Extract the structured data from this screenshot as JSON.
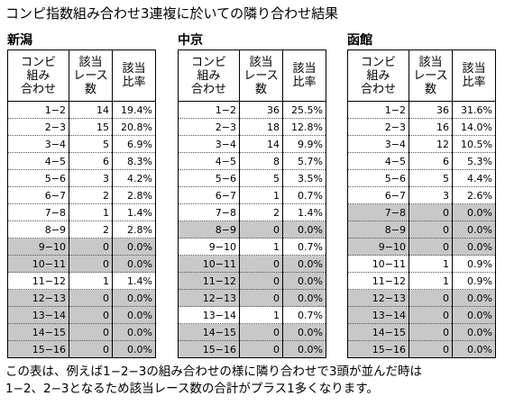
{
  "title": "コンピ指数組み合わせ3連複に於いての隣り合わせ結果",
  "headers": [
    "コンビ\n組み\n合わせ",
    "該当\nレース\n数",
    "該当\n比率"
  ],
  "tables": [
    {
      "name": "新潟",
      "rows": [
        [
          "1−2",
          14,
          "19.4%"
        ],
        [
          "2−3",
          15,
          "20.8%"
        ],
        [
          "3−4",
          5,
          "6.9%"
        ],
        [
          "4−5",
          6,
          "8.3%"
        ],
        [
          "5−6",
          3,
          "4.2%"
        ],
        [
          "6−7",
          2,
          "2.8%"
        ],
        [
          "7−8",
          1,
          "1.4%"
        ],
        [
          "8−9",
          2,
          "2.8%"
        ],
        [
          "9−10",
          0,
          "0.0%"
        ],
        [
          "10−11",
          0,
          "0.0%"
        ],
        [
          "11−12",
          1,
          "1.4%"
        ],
        [
          "12−13",
          0,
          "0.0%"
        ],
        [
          "13−14",
          0,
          "0.0%"
        ],
        [
          "14−15",
          0,
          "0.0%"
        ],
        [
          "15−16",
          0,
          "0.0%"
        ]
      ]
    },
    {
      "name": "中京",
      "rows": [
        [
          "1−2",
          36,
          "25.5%"
        ],
        [
          "2−3",
          18,
          "12.8%"
        ],
        [
          "3−4",
          14,
          "9.9%"
        ],
        [
          "4−5",
          8,
          "5.7%"
        ],
        [
          "5−6",
          5,
          "3.5%"
        ],
        [
          "6−7",
          1,
          "0.7%"
        ],
        [
          "7−8",
          2,
          "1.4%"
        ],
        [
          "8−9",
          0,
          "0.0%"
        ],
        [
          "9−10",
          1,
          "0.7%"
        ],
        [
          "10−11",
          0,
          "0.0%"
        ],
        [
          "11−12",
          0,
          "0.0%"
        ],
        [
          "12−13",
          0,
          "0.0%"
        ],
        [
          "13−14",
          1,
          "0.7%"
        ],
        [
          "14−15",
          0,
          "0.0%"
        ],
        [
          "15−16",
          0,
          "0.0%"
        ]
      ]
    },
    {
      "name": "函館",
      "rows": [
        [
          "1−2",
          36,
          "31.6%"
        ],
        [
          "2−3",
          16,
          "14.0%"
        ],
        [
          "3−4",
          12,
          "10.5%"
        ],
        [
          "4−5",
          6,
          "5.3%"
        ],
        [
          "5−6",
          5,
          "4.4%"
        ],
        [
          "6−7",
          3,
          "2.6%"
        ],
        [
          "7−8",
          0,
          "0.0%"
        ],
        [
          "8−9",
          0,
          "0.0%"
        ],
        [
          "9−10",
          0,
          "0.0%"
        ],
        [
          "10−11",
          1,
          "0.9%"
        ],
        [
          "11−12",
          1,
          "0.9%"
        ],
        [
          "12−13",
          0,
          "0.0%"
        ],
        [
          "13−14",
          0,
          "0.0%"
        ],
        [
          "14−15",
          0,
          "0.0%"
        ],
        [
          "15−16",
          0,
          "0.0%"
        ]
      ]
    }
  ],
  "footnote": "この表は、例えば1−2−3の組み合わせの様に隣り合わせで3頭が並んだ時は\n1−2、2−3となるため該当レース数の合計がプラス1多くなります。"
}
